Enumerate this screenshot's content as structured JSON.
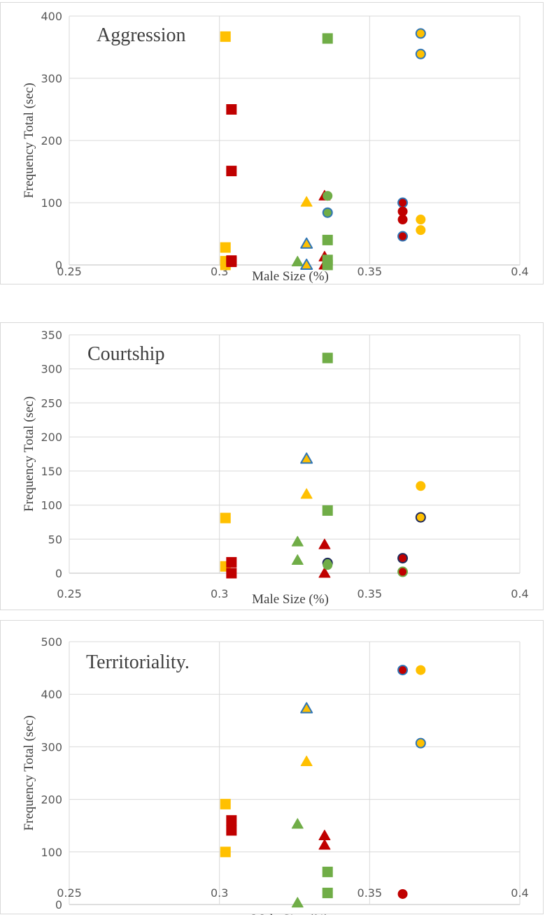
{
  "colors": {
    "green": "#70AD47",
    "yellow": "#FFC000",
    "red": "#C00000",
    "blue": "#2E75B6",
    "navy": "#1F2A5C",
    "grid": "#D9D9D9",
    "axis": "#BFBFBF"
  },
  "chart_data": [
    {
      "type": "scatter",
      "title": "Aggression",
      "xlabel": "Male Size (%)",
      "ylabel": "Frequency Total (sec)",
      "xlim": [
        0.25,
        0.4
      ],
      "ylim": [
        0,
        400
      ],
      "xticks": [
        "0.25",
        "0.3",
        "0.35",
        "0.4"
      ],
      "yticks": [
        "0",
        "100",
        "200",
        "300",
        "400"
      ],
      "grid": "vertical and horizontal major gridlines",
      "legend": "none",
      "points": [
        {
          "x": 0.302,
          "y": 367,
          "shape": "square",
          "fill": "yellow",
          "outline": "none"
        },
        {
          "x": 0.302,
          "y": 28,
          "shape": "square",
          "fill": "yellow",
          "outline": "none"
        },
        {
          "x": 0.302,
          "y": 6,
          "shape": "square",
          "fill": "yellow",
          "outline": "none"
        },
        {
          "x": 0.302,
          "y": 0,
          "shape": "square",
          "fill": "yellow",
          "outline": "none"
        },
        {
          "x": 0.304,
          "y": 250,
          "shape": "square",
          "fill": "red",
          "outline": "none"
        },
        {
          "x": 0.304,
          "y": 151,
          "shape": "square",
          "fill": "red",
          "outline": "none"
        },
        {
          "x": 0.304,
          "y": 7,
          "shape": "square",
          "fill": "red",
          "outline": "none"
        },
        {
          "x": 0.304,
          "y": 5,
          "shape": "square",
          "fill": "red",
          "outline": "none"
        },
        {
          "x": 0.326,
          "y": 5,
          "shape": "triangle",
          "fill": "green",
          "outline": "none"
        },
        {
          "x": 0.329,
          "y": 101,
          "shape": "triangle",
          "fill": "yellow",
          "outline": "none"
        },
        {
          "x": 0.329,
          "y": 34,
          "shape": "triangle",
          "fill": "yellow",
          "outline": "blue"
        },
        {
          "x": 0.329,
          "y": 0,
          "shape": "triangle",
          "fill": "yellow",
          "outline": "blue"
        },
        {
          "x": 0.335,
          "y": 111,
          "shape": "triangle",
          "fill": "red",
          "outline": "none"
        },
        {
          "x": 0.335,
          "y": 13,
          "shape": "triangle",
          "fill": "red",
          "outline": "none"
        },
        {
          "x": 0.335,
          "y": 0,
          "shape": "triangle",
          "fill": "red",
          "outline": "none"
        },
        {
          "x": 0.336,
          "y": 364,
          "shape": "square",
          "fill": "green",
          "outline": "none"
        },
        {
          "x": 0.336,
          "y": 40,
          "shape": "square",
          "fill": "green",
          "outline": "none"
        },
        {
          "x": 0.336,
          "y": 8,
          "shape": "square",
          "fill": "green",
          "outline": "none"
        },
        {
          "x": 0.336,
          "y": 0,
          "shape": "square",
          "fill": "green",
          "outline": "none"
        },
        {
          "x": 0.336,
          "y": 111,
          "shape": "circle",
          "fill": "green",
          "outline": "none"
        },
        {
          "x": 0.336,
          "y": 84,
          "shape": "circle",
          "fill": "green",
          "outline": "blue"
        },
        {
          "x": 0.361,
          "y": 100,
          "shape": "circle",
          "fill": "red",
          "outline": "blue"
        },
        {
          "x": 0.361,
          "y": 86,
          "shape": "circle",
          "fill": "red",
          "outline": "none"
        },
        {
          "x": 0.361,
          "y": 73,
          "shape": "circle",
          "fill": "red",
          "outline": "none"
        },
        {
          "x": 0.361,
          "y": 46,
          "shape": "circle",
          "fill": "red",
          "outline": "blue"
        },
        {
          "x": 0.367,
          "y": 372,
          "shape": "circle",
          "fill": "yellow",
          "outline": "blue"
        },
        {
          "x": 0.367,
          "y": 339,
          "shape": "circle",
          "fill": "yellow",
          "outline": "blue"
        },
        {
          "x": 0.367,
          "y": 73,
          "shape": "circle",
          "fill": "yellow",
          "outline": "none"
        },
        {
          "x": 0.367,
          "y": 56,
          "shape": "circle",
          "fill": "yellow",
          "outline": "none"
        }
      ]
    },
    {
      "type": "scatter",
      "title": "Courtship",
      "xlabel": "Male Size (%)",
      "ylabel": "Frequency Total (sec)",
      "xlim": [
        0.25,
        0.4
      ],
      "ylim": [
        0,
        350
      ],
      "xticks": [
        "0.25",
        "0.3",
        "0.35",
        "0.4"
      ],
      "yticks": [
        "0",
        "50",
        "100",
        "150",
        "200",
        "250",
        "300",
        "350"
      ],
      "grid": "vertical and horizontal major gridlines",
      "legend": "none",
      "points": [
        {
          "x": 0.302,
          "y": 81,
          "shape": "square",
          "fill": "yellow",
          "outline": "none"
        },
        {
          "x": 0.302,
          "y": 10,
          "shape": "square",
          "fill": "yellow",
          "outline": "none"
        },
        {
          "x": 0.304,
          "y": 16,
          "shape": "square",
          "fill": "red",
          "outline": "none"
        },
        {
          "x": 0.304,
          "y": 0,
          "shape": "square",
          "fill": "red",
          "outline": "none"
        },
        {
          "x": 0.326,
          "y": 46,
          "shape": "triangle",
          "fill": "green",
          "outline": "none"
        },
        {
          "x": 0.326,
          "y": 19,
          "shape": "triangle",
          "fill": "green",
          "outline": "none"
        },
        {
          "x": 0.329,
          "y": 168,
          "shape": "triangle",
          "fill": "yellow",
          "outline": "blue"
        },
        {
          "x": 0.329,
          "y": 116,
          "shape": "triangle",
          "fill": "yellow",
          "outline": "none"
        },
        {
          "x": 0.335,
          "y": 42,
          "shape": "triangle",
          "fill": "red",
          "outline": "none"
        },
        {
          "x": 0.335,
          "y": 0,
          "shape": "triangle",
          "fill": "red",
          "outline": "none"
        },
        {
          "x": 0.336,
          "y": 316,
          "shape": "square",
          "fill": "green",
          "outline": "none"
        },
        {
          "x": 0.336,
          "y": 92,
          "shape": "square",
          "fill": "green",
          "outline": "none"
        },
        {
          "x": 0.336,
          "y": 15,
          "shape": "circle",
          "fill": "green",
          "outline": "navy"
        },
        {
          "x": 0.336,
          "y": 12,
          "shape": "circle",
          "fill": "green",
          "outline": "none"
        },
        {
          "x": 0.361,
          "y": 22,
          "shape": "circle",
          "fill": "red",
          "outline": "navy"
        },
        {
          "x": 0.361,
          "y": 2,
          "shape": "circle",
          "fill": "red",
          "outline": "green"
        },
        {
          "x": 0.367,
          "y": 128,
          "shape": "circle",
          "fill": "yellow",
          "outline": "none"
        },
        {
          "x": 0.367,
          "y": 82,
          "shape": "circle",
          "fill": "yellow",
          "outline": "navy"
        }
      ]
    },
    {
      "type": "scatter",
      "title": "Territoriality.",
      "xlabel": "Male Size (%)",
      "ylabel": "Frequency Total (sec)",
      "xlim": [
        0.25,
        0.4
      ],
      "ylim": [
        0,
        500
      ],
      "xticks": [
        "0.25",
        "0.3",
        "0.35",
        "0.4"
      ],
      "yticks": [
        "0",
        "100",
        "200",
        "300",
        "400",
        "500"
      ],
      "grid": "vertical and horizontal major gridlines",
      "legend": "none",
      "points": [
        {
          "x": 0.302,
          "y": 191,
          "shape": "square",
          "fill": "yellow",
          "outline": "none"
        },
        {
          "x": 0.302,
          "y": 100,
          "shape": "square",
          "fill": "yellow",
          "outline": "none"
        },
        {
          "x": 0.304,
          "y": 160,
          "shape": "square",
          "fill": "red",
          "outline": "none"
        },
        {
          "x": 0.304,
          "y": 141,
          "shape": "square",
          "fill": "red",
          "outline": "none"
        },
        {
          "x": 0.326,
          "y": 153,
          "shape": "triangle",
          "fill": "green",
          "outline": "none"
        },
        {
          "x": 0.326,
          "y": 3,
          "shape": "triangle",
          "fill": "green",
          "outline": "none"
        },
        {
          "x": 0.329,
          "y": 373,
          "shape": "triangle",
          "fill": "yellow",
          "outline": "blue"
        },
        {
          "x": 0.329,
          "y": 272,
          "shape": "triangle",
          "fill": "yellow",
          "outline": "none"
        },
        {
          "x": 0.335,
          "y": 131,
          "shape": "triangle",
          "fill": "red",
          "outline": "none"
        },
        {
          "x": 0.335,
          "y": 113,
          "shape": "triangle",
          "fill": "red",
          "outline": "none"
        },
        {
          "x": 0.336,
          "y": 62,
          "shape": "square",
          "fill": "green",
          "outline": "none"
        },
        {
          "x": 0.336,
          "y": 22,
          "shape": "square",
          "fill": "green",
          "outline": "none"
        },
        {
          "x": 0.361,
          "y": 446,
          "shape": "circle",
          "fill": "red",
          "outline": "blue"
        },
        {
          "x": 0.361,
          "y": 20,
          "shape": "circle",
          "fill": "red",
          "outline": "none"
        },
        {
          "x": 0.367,
          "y": 446,
          "shape": "circle",
          "fill": "yellow",
          "outline": "none"
        },
        {
          "x": 0.367,
          "y": 307,
          "shape": "circle",
          "fill": "yellow",
          "outline": "blue"
        }
      ]
    }
  ]
}
